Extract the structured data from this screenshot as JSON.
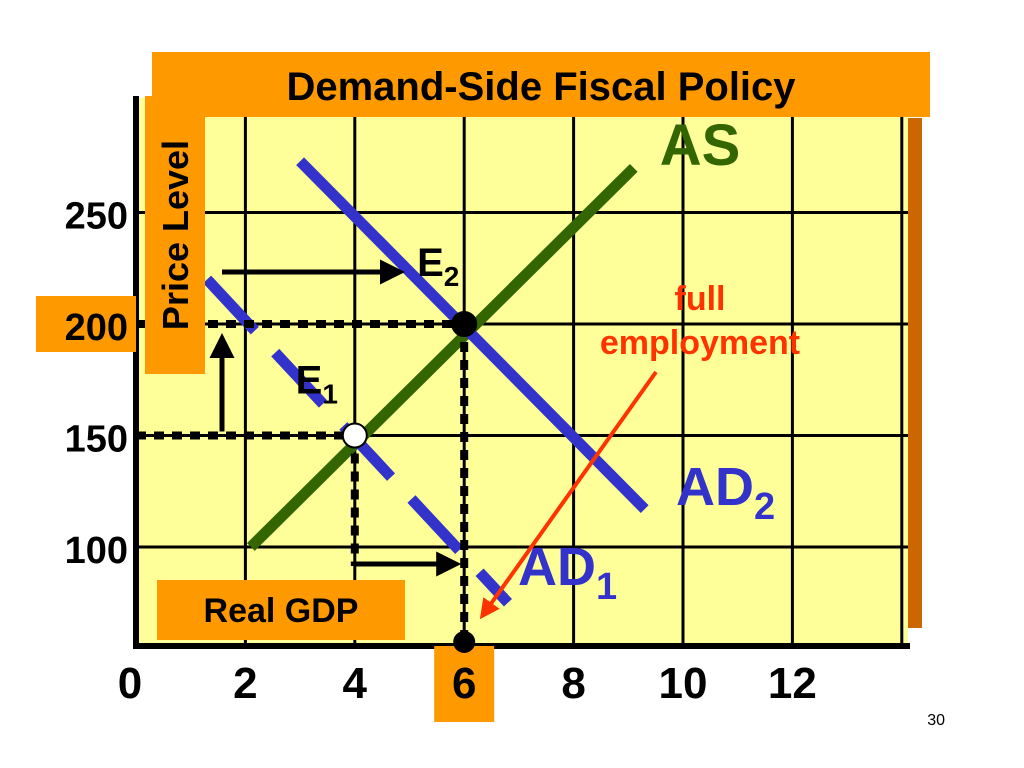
{
  "colors": {
    "plot_bg": "#FFFF99",
    "orange": "#FF9900",
    "shadow": "#CC6600",
    "as_line": "#336600",
    "ad_line": "#3333CC",
    "full_employment": "#FF3300",
    "black": "#000000"
  },
  "chart_data": {
    "type": "line",
    "title": "Demand-Side Fiscal Policy",
    "xlabel": "Real GDP",
    "ylabel": "Price Level",
    "xlim": [
      0,
      14
    ],
    "ylim": [
      50,
      310
    ],
    "grid": true,
    "x_ticks": [
      0,
      2,
      4,
      6,
      8,
      10,
      12
    ],
    "x_tick_labels": [
      "0",
      "2",
      "4",
      "6",
      "8",
      "10",
      "12"
    ],
    "y_ticks": [
      100,
      150,
      200,
      250
    ],
    "y_tick_labels": [
      "100",
      "150",
      "200",
      "250"
    ],
    "highlighted_x_tick": "6",
    "highlighted_y_tick": "200",
    "series": [
      {
        "name": "AS",
        "style": "solid",
        "color_key": "as_line",
        "x": [
          2.1,
          9.1
        ],
        "y": [
          100,
          270
        ]
      },
      {
        "name": "AD",
        "sub": "2",
        "style": "solid",
        "color_key": "ad_line",
        "x": [
          3.0,
          9.3
        ],
        "y": [
          273,
          117
        ]
      },
      {
        "name": "AD",
        "sub": "1",
        "style": "dashed",
        "color_key": "ad_line",
        "x": [
          1.3,
          6.8
        ],
        "y": [
          220,
          75
        ]
      }
    ],
    "points": [
      {
        "label": "E",
        "sub": "1",
        "x": 4,
        "y": 150,
        "fill": "white"
      },
      {
        "label": "E",
        "sub": "2",
        "x": 6,
        "y": 200,
        "fill": "black"
      }
    ],
    "annotations": {
      "full_employment_line1": "full",
      "full_employment_line2": "employment",
      "full_employment_x": 6
    }
  },
  "page_number": "30"
}
